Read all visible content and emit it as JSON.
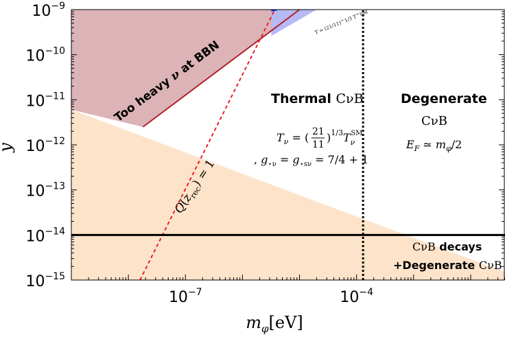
{
  "chart_data": {
    "type": "area",
    "xlabel": "m_φ[eV]",
    "ylabel": "y",
    "x_scale": "log",
    "y_scale": "log",
    "xlim": [
      1e-09,
      0.04
    ],
    "ylim": [
      1e-15,
      1e-09
    ],
    "x_ticks": [
      {
        "value": 1e-07,
        "label": "10",
        "exp": "−7"
      },
      {
        "value": 0.0001,
        "label": "10",
        "exp": "−4"
      }
    ],
    "y_ticks": [
      {
        "value": 1e-09,
        "label": "10",
        "exp": "−9"
      },
      {
        "value": 1e-10,
        "label": "10",
        "exp": "−10"
      },
      {
        "value": 1e-11,
        "label": "10",
        "exp": "−11"
      },
      {
        "value": 1e-12,
        "label": "10",
        "exp": "−12"
      },
      {
        "value": 1e-13,
        "label": "10",
        "exp": "−13"
      },
      {
        "value": 1e-14,
        "label": "10",
        "exp": "−14"
      },
      {
        "value": 1e-15,
        "label": "10",
        "exp": "−15"
      }
    ],
    "regions": [
      {
        "name": "pink",
        "color": "#dcb3b6",
        "points": [
          [
            1e-09,
            1e-09
          ],
          [
            1e-05,
            1e-09
          ],
          [
            1.8e-08,
            2.5e-12
          ],
          [
            1e-09,
            6e-12
          ]
        ]
      },
      {
        "name": "orange",
        "color": "#fde3c9",
        "points": [
          [
            1e-09,
            6e-12
          ],
          [
            0.04,
            1.5e-15
          ],
          [
            0.04,
            1e-15
          ],
          [
            1e-09,
            1e-15
          ]
        ]
      },
      {
        "name": "blue",
        "color": "#b7b9f5",
        "points": [
          [
            3.2e-06,
            1e-09
          ],
          [
            2e-05,
            1e-09
          ],
          [
            3.2e-06,
            2.6e-10
          ]
        ]
      }
    ],
    "lines": [
      {
        "name": "bbn-bound",
        "color": "#b0202a",
        "style": "solid",
        "width": 2,
        "points": [
          [
            1.8e-08,
            2.5e-12
          ],
          [
            1e-05,
            1e-09
          ]
        ]
      },
      {
        "name": "q-equals-one",
        "color": "#e8202a",
        "style": "dashed",
        "width": 2,
        "points": [
          [
            1.6e-08,
            1e-15
          ],
          [
            3.7e-06,
            1e-09
          ]
        ]
      },
      {
        "name": "degenerate-boundary",
        "color": "#000000",
        "style": "dotted",
        "width": 3,
        "points": [
          [
            0.00013,
            1e-15
          ],
          [
            0.00013,
            1e-09
          ]
        ]
      },
      {
        "name": "decay-threshold",
        "color": "#000000",
        "style": "solid",
        "width": 3,
        "points": [
          [
            1e-09,
            1e-14
          ],
          [
            0.04,
            1e-14
          ]
        ]
      },
      {
        "name": "blue-edge",
        "color": "#1a1acc",
        "style": "solid",
        "width": 3,
        "points": [
          [
            3.2e-06,
            9.6e-10
          ],
          [
            4e-06,
            1e-09
          ]
        ]
      }
    ],
    "annotations": {
      "bbn": "Too heavy ν at BBN",
      "thermal_title": "Thermal CνB",
      "thermal_temp": "T_ν = (21/11)^{1/3} T_ν^{SM}",
      "thermal_dof": ", g_{⋆ν} = g_{⋆sν} = 7/4 + 1",
      "degenerate_title": "Degenerate",
      "degenerate_sub": "CνB",
      "degenerate_ef": "E_F ≃ m_φ/2",
      "q_line": "Q(z_rec) = 1",
      "decays_line1": "CνB decays",
      "decays_line2": "+Degenerate CνB",
      "blue_label": "T_ν ≃ (21/11)^{1/3} T_ν^{SM}"
    }
  }
}
